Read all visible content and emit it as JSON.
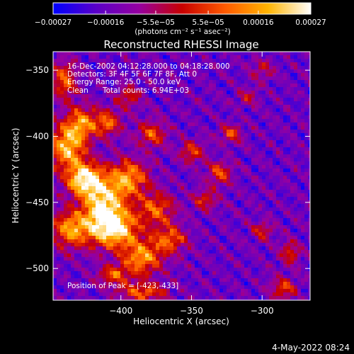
{
  "chart_data": {
    "type": "heatmap",
    "title": "Reconstructed RHESSI Image",
    "xlabel": "Heliocentric X (arcsec)",
    "ylabel": "Heliocentric Y (arcsec)",
    "xlim": [
      -448,
      -266
    ],
    "ylim": [
      -524,
      -336
    ],
    "xticks": [
      -400,
      -350,
      -300
    ],
    "xtick_labels": [
      "−400",
      "−350",
      "−300"
    ],
    "yticks": [
      -350,
      -400,
      -450,
      -500
    ],
    "ytick_labels": [
      "−350",
      "−400",
      "−450",
      "−500"
    ],
    "colorbar": {
      "min": -0.00027,
      "max": 0.00027,
      "ticks": [
        -0.00027,
        -0.00016,
        -5.5e-05,
        5.5e-05,
        0.00016,
        0.00027
      ],
      "tick_labels": [
        "−0.00027",
        "−0.00016",
        "−5.5e−05",
        "5.5e−05",
        "0.00016",
        "0.00027"
      ],
      "unit_label": "(photons cm⁻² s⁻¹ asec⁻²)"
    },
    "peak": {
      "x": -423,
      "y": -433
    },
    "grid": false,
    "colormap": [
      "#0000ff",
      "#5a00c8",
      "#9600a0",
      "#c80000",
      "#ff5a00",
      "#ffb400",
      "#ffffff"
    ],
    "annotations": {
      "time_range": "16-Dec-2002 04:12:28.000 to 04:18:28.000",
      "detectors": "Detectors: 3F 4F 5F 6F 7F 8F, Att 0",
      "energy_range": "Energy Range: 25.0 - 50.0 keV",
      "algorithm": "Clean",
      "total_counts": "Total counts: 6.94E+03",
      "peak_position": "Position of Peak = [-423,-433]"
    },
    "sources": [
      {
        "x": -425,
        "y": -433,
        "amp": 1.0,
        "sx": 9,
        "sy": 9
      },
      {
        "x": -405,
        "y": -470,
        "amp": 0.95,
        "sx": 12,
        "sy": 10
      },
      {
        "x": -412,
        "y": -452,
        "amp": 0.8,
        "sx": 10,
        "sy": 12
      },
      {
        "x": -438,
        "y": -408,
        "amp": 0.8,
        "sx": 9,
        "sy": 12
      },
      {
        "x": -435,
        "y": -470,
        "amp": 0.7,
        "sx": 10,
        "sy": 10
      },
      {
        "x": -395,
        "y": -432,
        "amp": 0.7,
        "sx": 10,
        "sy": 10
      },
      {
        "x": -385,
        "y": -492,
        "amp": 0.7,
        "sx": 10,
        "sy": 9
      },
      {
        "x": -365,
        "y": -478,
        "amp": 0.55,
        "sx": 8,
        "sy": 7
      },
      {
        "x": -375,
        "y": -455,
        "amp": 0.55,
        "sx": 9,
        "sy": 9
      },
      {
        "x": -428,
        "y": -390,
        "amp": 0.6,
        "sx": 7,
        "sy": 9
      },
      {
        "x": -410,
        "y": -390,
        "amp": 0.55,
        "sx": 7,
        "sy": 7
      },
      {
        "x": -440,
        "y": -358,
        "amp": 0.55,
        "sx": 6,
        "sy": 10
      },
      {
        "x": -378,
        "y": -398,
        "amp": 0.5,
        "sx": 7,
        "sy": 7
      },
      {
        "x": -350,
        "y": -412,
        "amp": 0.45,
        "sx": 6,
        "sy": 6
      },
      {
        "x": -385,
        "y": -518,
        "amp": 0.55,
        "sx": 12,
        "sy": 5
      },
      {
        "x": -405,
        "y": -505,
        "amp": 0.5,
        "sx": 8,
        "sy": 5
      },
      {
        "x": -330,
        "y": -428,
        "amp": 0.5,
        "sx": 6,
        "sy": 6
      },
      {
        "x": -322,
        "y": -398,
        "amp": 0.45,
        "sx": 5,
        "sy": 5
      },
      {
        "x": -340,
        "y": -448,
        "amp": 0.4,
        "sx": 6,
        "sy": 6
      },
      {
        "x": -395,
        "y": -370,
        "amp": 0.4,
        "sx": 6,
        "sy": 6
      },
      {
        "x": -310,
        "y": -370,
        "amp": 0.3,
        "sx": 5,
        "sy": 5
      },
      {
        "x": -300,
        "y": -472,
        "amp": 0.4,
        "sx": 5,
        "sy": 5
      },
      {
        "x": -280,
        "y": -488,
        "amp": 0.45,
        "sx": 5,
        "sy": 6
      },
      {
        "x": -285,
        "y": -515,
        "amp": 0.5,
        "sx": 6,
        "sy": 6
      },
      {
        "x": -300,
        "y": -350,
        "amp": 0.3,
        "sx": 6,
        "sy": 5
      }
    ]
  },
  "footer": {
    "date": "4-May-2022 08:24"
  }
}
